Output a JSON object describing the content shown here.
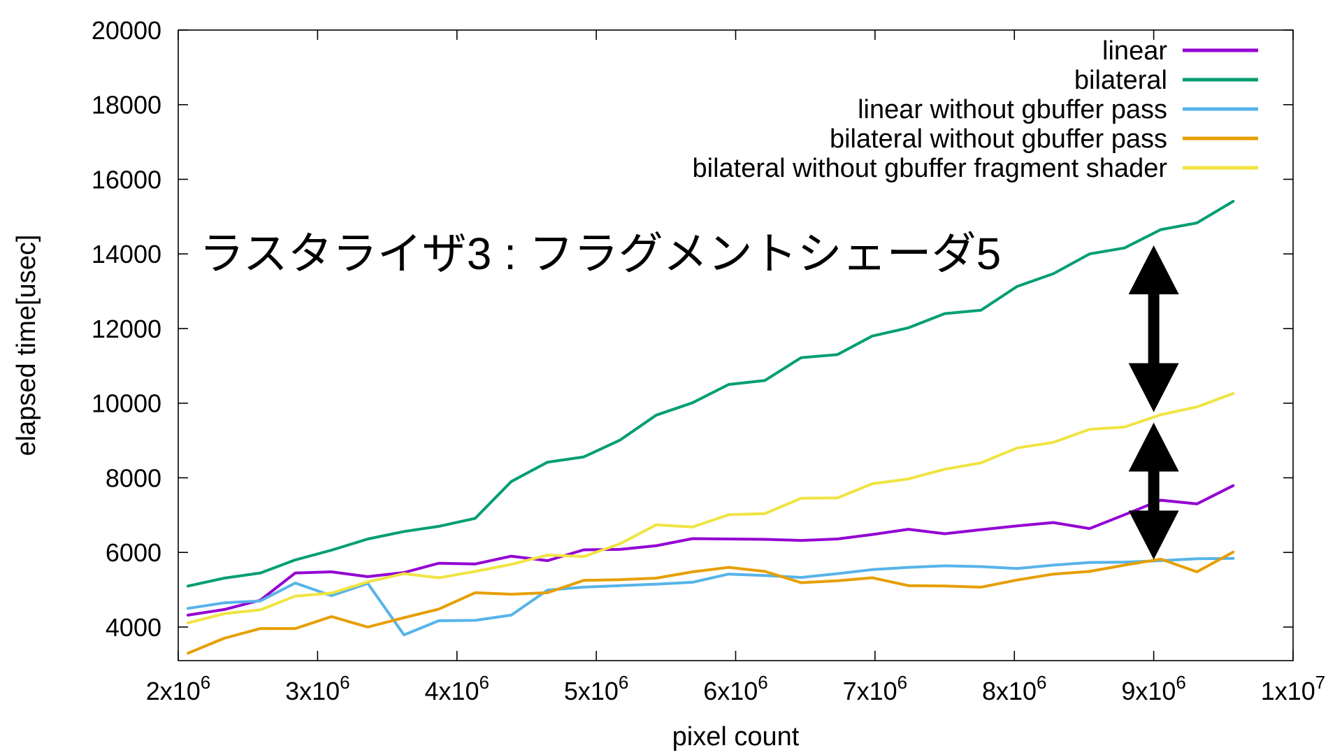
{
  "chart_data": {
    "type": "line",
    "title": "",
    "xlabel": "pixel count",
    "ylabel": "elapsed time[usec]",
    "xlim": [
      2000000,
      10000000
    ],
    "ylim": [
      3100,
      20000
    ],
    "grid": false,
    "legend_position": "top-right",
    "x_ticks": [
      {
        "value": 2000000,
        "mantissa": "2x10",
        "exponent": "6"
      },
      {
        "value": 3000000,
        "mantissa": "3x10",
        "exponent": "6"
      },
      {
        "value": 4000000,
        "mantissa": "4x10",
        "exponent": "6"
      },
      {
        "value": 5000000,
        "mantissa": "5x10",
        "exponent": "6"
      },
      {
        "value": 6000000,
        "mantissa": "6x10",
        "exponent": "6"
      },
      {
        "value": 7000000,
        "mantissa": "7x10",
        "exponent": "6"
      },
      {
        "value": 8000000,
        "mantissa": "8x10",
        "exponent": "6"
      },
      {
        "value": 9000000,
        "mantissa": "9x10",
        "exponent": "6"
      },
      {
        "value": 10000000,
        "mantissa": "1x10",
        "exponent": "7"
      }
    ],
    "y_ticks": [
      4000,
      6000,
      8000,
      10000,
      12000,
      14000,
      16000,
      18000,
      20000
    ],
    "x": [
      2070000,
      2330000,
      2590000,
      2840000,
      3100000,
      3360000,
      3620000,
      3870000,
      4130000,
      4390000,
      4650000,
      4910000,
      5170000,
      5430000,
      5690000,
      5950000,
      6210000,
      6470000,
      6730000,
      6980000,
      7240000,
      7500000,
      7760000,
      8020000,
      8280000,
      8540000,
      8790000,
      9050000,
      9310000,
      9570000
    ],
    "series": [
      {
        "name": "linear",
        "color": "#9400d3",
        "values": [
          4320,
          4470,
          4720,
          5450,
          5480,
          5350,
          5460,
          5710,
          5690,
          5900,
          5780,
          6070,
          6080,
          6180,
          6370,
          6360,
          6350,
          6320,
          6360,
          6480,
          6620,
          6500,
          6610,
          6710,
          6800,
          6640,
          7010,
          7400,
          7300,
          7790
        ]
      },
      {
        "name": "bilateral",
        "color": "#009e73",
        "values": [
          5100,
          5310,
          5450,
          5800,
          6060,
          6360,
          6560,
          6700,
          6910,
          7900,
          8420,
          8560,
          9010,
          9680,
          10010,
          10500,
          10610,
          11220,
          11300,
          11800,
          12020,
          12400,
          12490,
          13130,
          13470,
          14000,
          14160,
          14650,
          14830,
          15410
        ]
      },
      {
        "name": "linear without gbuffer pass",
        "color": "#56b4e9",
        "values": [
          4500,
          4650,
          4700,
          5180,
          4840,
          5170,
          3790,
          4170,
          4180,
          4320,
          4990,
          5070,
          5110,
          5150,
          5200,
          5420,
          5380,
          5330,
          5430,
          5540,
          5600,
          5640,
          5620,
          5570,
          5660,
          5730,
          5740,
          5780,
          5830,
          5840
        ]
      },
      {
        "name": "bilateral without gbuffer pass",
        "color": "#e69f00",
        "values": [
          3300,
          3700,
          3960,
          3960,
          4280,
          4000,
          4250,
          4480,
          4920,
          4880,
          4920,
          5250,
          5270,
          5310,
          5480,
          5600,
          5490,
          5190,
          5240,
          5320,
          5110,
          5100,
          5070,
          5260,
          5420,
          5490,
          5660,
          5820,
          5480,
          6010
        ]
      },
      {
        "name": "bilateral without gbuffer fragment shader",
        "color": "#f0e442",
        "values": [
          4110,
          4360,
          4460,
          4830,
          4910,
          5210,
          5430,
          5320,
          5490,
          5680,
          5930,
          5890,
          6230,
          6740,
          6680,
          7010,
          7040,
          7450,
          7460,
          7840,
          7970,
          8230,
          8400,
          8800,
          8950,
          9300,
          9360,
          9690,
          9900,
          10260
        ]
      }
    ],
    "annotation_text": "ラスタライザ3 : フラグメントシェーダ5",
    "arrows": [
      {
        "x": 9000000,
        "y_from": 14230,
        "y_to": 9760
      },
      {
        "x": 9000000,
        "y_from": 9480,
        "y_to": 5810
      }
    ]
  }
}
